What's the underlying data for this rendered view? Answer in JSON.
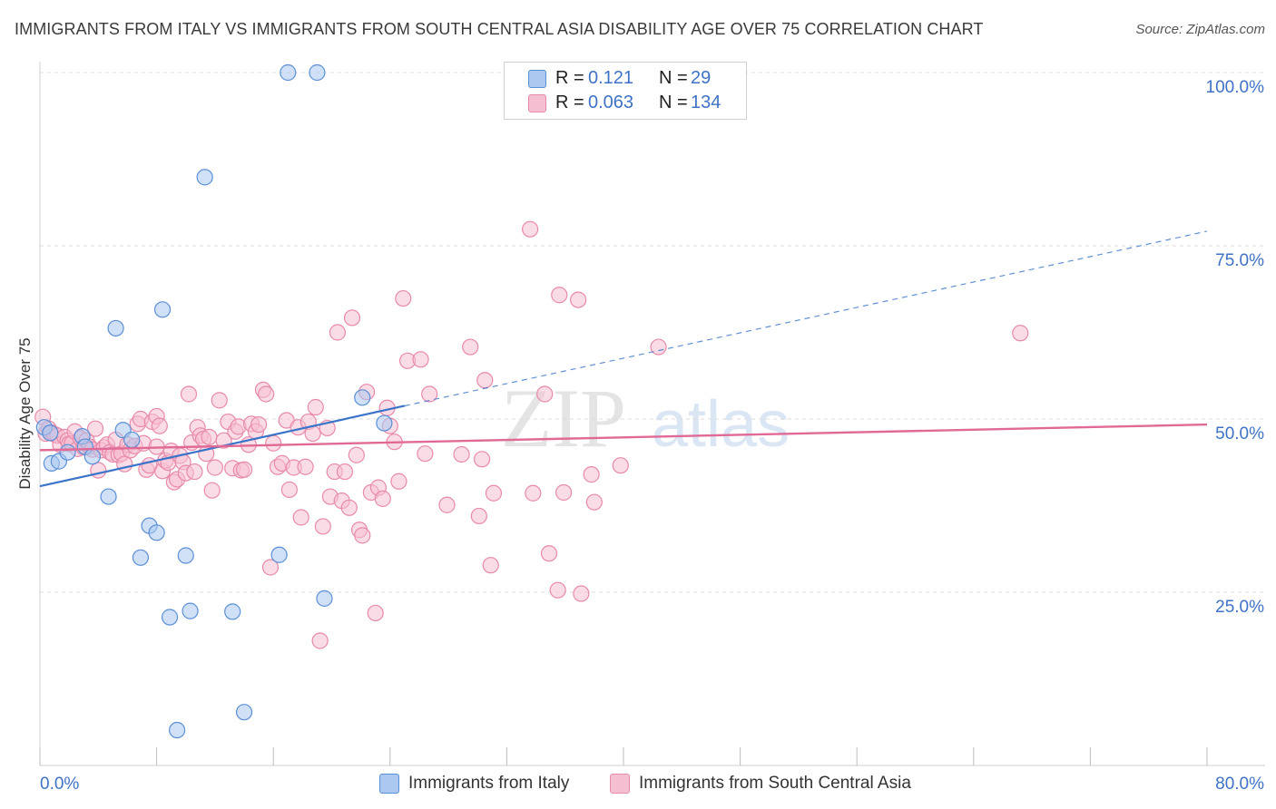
{
  "title": "IMMIGRANTS FROM ITALY VS IMMIGRANTS FROM SOUTH CENTRAL ASIA DISABILITY AGE OVER 75 CORRELATION CHART",
  "source": "Source: ZipAtlas.com",
  "watermark": "ZIPatlas",
  "colors": {
    "blue_fill": "#aac8f0",
    "blue_stroke": "#5b8fd6",
    "blue_line": "#3a74c9",
    "pink_fill": "#f6bfd1",
    "pink_stroke": "#e88aaa",
    "pink_line": "#e06a95",
    "tick_text": "#3f72c6",
    "grid": "#dcdcdc"
  },
  "legend": {
    "rows": [
      {
        "r_label": "R =",
        "r_value": "0.121",
        "n_label": "N =",
        "n_value": "29"
      },
      {
        "r_label": "R =",
        "r_value": "0.063",
        "n_label": "N =",
        "n_value": "134"
      }
    ]
  },
  "chart_data": {
    "type": "scatter",
    "title": "IMMIGRANTS FROM ITALY VS IMMIGRANTS FROM SOUTH CENTRAL ASIA DISABILITY AGE OVER 75 CORRELATION CHART",
    "xlabel": "",
    "ylabel": "Disability Age Over 75",
    "xlim": [
      0,
      80
    ],
    "ylim": [
      0,
      100
    ],
    "x_tick_labels": [
      "0.0%",
      "80.0%"
    ],
    "y_tick_values": [
      25,
      50,
      75,
      100
    ],
    "y_tick_labels": [
      "25.0%",
      "50.0%",
      "75.0%",
      "100.0%"
    ],
    "legend_position": "top-center",
    "series": [
      {
        "name": "Immigrants from Italy",
        "color": "blue",
        "R": 0.121,
        "N": 29,
        "trend": {
          "x0": 0,
          "y0": 40.3,
          "x1": 25,
          "y1": 51.9,
          "dashed_to_x": 80,
          "dashed_to_y": 77.1
        },
        "points": [
          [
            0.3,
            48.8
          ],
          [
            0.7,
            48.0
          ],
          [
            0.8,
            43.6
          ],
          [
            1.3,
            43.9
          ],
          [
            1.9,
            45.2
          ],
          [
            2.9,
            47.5
          ],
          [
            3.1,
            46.0
          ],
          [
            3.6,
            44.6
          ],
          [
            4.7,
            38.8
          ],
          [
            5.2,
            63.1
          ],
          [
            5.7,
            48.4
          ],
          [
            6.3,
            47.0
          ],
          [
            6.9,
            30.0
          ],
          [
            7.5,
            34.6
          ],
          [
            8.0,
            33.6
          ],
          [
            8.4,
            65.8
          ],
          [
            8.9,
            21.4
          ],
          [
            9.4,
            5.1
          ],
          [
            10.0,
            30.3
          ],
          [
            10.3,
            22.3
          ],
          [
            11.3,
            84.9
          ],
          [
            13.2,
            22.2
          ],
          [
            14.0,
            7.7
          ],
          [
            16.4,
            30.4
          ],
          [
            17.0,
            100.0
          ],
          [
            19.0,
            100.0
          ],
          [
            19.5,
            24.1
          ],
          [
            22.1,
            53.1
          ],
          [
            23.6,
            49.4
          ]
        ]
      },
      {
        "name": "Immigrants from South Central Asia",
        "color": "pink",
        "R": 0.063,
        "N": 134,
        "trend": {
          "x0": 0,
          "y0": 45.5,
          "x1": 80,
          "y1": 49.2
        },
        "points": [
          [
            0.2,
            50.3
          ],
          [
            0.4,
            47.9
          ],
          [
            0.6,
            48.6
          ],
          [
            0.8,
            48.0
          ],
          [
            1.0,
            47.8
          ],
          [
            1.2,
            47.6
          ],
          [
            1.4,
            46.3
          ],
          [
            1.7,
            47.4
          ],
          [
            1.9,
            46.9
          ],
          [
            2.0,
            46.4
          ],
          [
            2.2,
            46.5
          ],
          [
            2.4,
            48.2
          ],
          [
            2.6,
            45.7
          ],
          [
            2.8,
            47.2
          ],
          [
            3.0,
            45.9
          ],
          [
            3.2,
            46.9
          ],
          [
            3.4,
            46.0
          ],
          [
            3.6,
            45.6
          ],
          [
            3.8,
            48.6
          ],
          [
            4.0,
            42.6
          ],
          [
            4.2,
            45.5
          ],
          [
            4.4,
            45.9
          ],
          [
            4.6,
            46.3
          ],
          [
            4.8,
            45.2
          ],
          [
            5.0,
            44.9
          ],
          [
            5.2,
            47.0
          ],
          [
            5.4,
            44.8
          ],
          [
            5.6,
            45.0
          ],
          [
            5.8,
            43.5
          ],
          [
            6.0,
            46.3
          ],
          [
            6.2,
            45.5
          ],
          [
            6.5,
            46.1
          ],
          [
            6.7,
            49.3
          ],
          [
            6.9,
            50.0
          ],
          [
            7.1,
            46.5
          ],
          [
            7.3,
            42.7
          ],
          [
            7.5,
            43.3
          ],
          [
            7.7,
            49.6
          ],
          [
            8.0,
            50.4
          ],
          [
            8.2,
            49.0
          ],
          [
            8.4,
            42.5
          ],
          [
            8.6,
            44.0
          ],
          [
            8.8,
            43.7
          ],
          [
            9.0,
            45.4
          ],
          [
            9.2,
            40.9
          ],
          [
            9.4,
            41.3
          ],
          [
            9.6,
            44.7
          ],
          [
            9.8,
            43.8
          ],
          [
            10.0,
            42.2
          ],
          [
            10.2,
            53.6
          ],
          [
            10.4,
            46.6
          ],
          [
            10.6,
            42.4
          ],
          [
            10.8,
            48.8
          ],
          [
            11.0,
            47.6
          ],
          [
            11.2,
            47.1
          ],
          [
            11.4,
            45.0
          ],
          [
            11.6,
            47.4
          ],
          [
            11.8,
            39.7
          ],
          [
            12.0,
            43.0
          ],
          [
            12.3,
            52.7
          ],
          [
            12.6,
            46.9
          ],
          [
            12.9,
            49.6
          ],
          [
            13.2,
            42.9
          ],
          [
            13.4,
            48.2
          ],
          [
            13.6,
            48.9
          ],
          [
            13.8,
            42.6
          ],
          [
            14.0,
            42.7
          ],
          [
            14.3,
            46.3
          ],
          [
            14.5,
            49.3
          ],
          [
            14.8,
            48.2
          ],
          [
            15.0,
            49.2
          ],
          [
            15.3,
            54.2
          ],
          [
            15.5,
            53.6
          ],
          [
            15.8,
            28.6
          ],
          [
            16.0,
            46.5
          ],
          [
            16.3,
            43.1
          ],
          [
            16.6,
            43.6
          ],
          [
            16.9,
            49.8
          ],
          [
            17.1,
            39.8
          ],
          [
            17.4,
            43.0
          ],
          [
            17.7,
            48.8
          ],
          [
            17.9,
            35.8
          ],
          [
            18.2,
            43.1
          ],
          [
            18.4,
            49.6
          ],
          [
            18.7,
            47.9
          ],
          [
            18.9,
            51.7
          ],
          [
            19.2,
            18.0
          ],
          [
            19.4,
            34.5
          ],
          [
            19.7,
            48.7
          ],
          [
            19.9,
            38.8
          ],
          [
            20.2,
            42.4
          ],
          [
            20.4,
            62.5
          ],
          [
            20.7,
            38.2
          ],
          [
            20.9,
            42.4
          ],
          [
            21.2,
            37.2
          ],
          [
            21.4,
            64.6
          ],
          [
            21.7,
            44.8
          ],
          [
            21.9,
            34.0
          ],
          [
            22.1,
            33.2
          ],
          [
            22.4,
            53.9
          ],
          [
            22.7,
            39.4
          ],
          [
            23.0,
            22.0
          ],
          [
            23.2,
            40.1
          ],
          [
            23.5,
            38.5
          ],
          [
            23.8,
            51.6
          ],
          [
            24.0,
            49.0
          ],
          [
            24.3,
            46.7
          ],
          [
            24.6,
            41.0
          ],
          [
            24.9,
            67.4
          ],
          [
            25.2,
            58.4
          ],
          [
            26.1,
            58.6
          ],
          [
            26.4,
            45.0
          ],
          [
            26.7,
            53.6
          ],
          [
            27.9,
            37.6
          ],
          [
            28.9,
            44.9
          ],
          [
            29.5,
            60.4
          ],
          [
            30.1,
            36.0
          ],
          [
            30.3,
            44.2
          ],
          [
            30.5,
            55.6
          ],
          [
            30.9,
            28.9
          ],
          [
            31.1,
            39.3
          ],
          [
            33.6,
            77.4
          ],
          [
            33.8,
            39.3
          ],
          [
            34.6,
            53.6
          ],
          [
            34.9,
            30.6
          ],
          [
            35.5,
            25.3
          ],
          [
            35.6,
            67.9
          ],
          [
            35.9,
            39.4
          ],
          [
            36.9,
            67.2
          ],
          [
            37.1,
            24.8
          ],
          [
            37.8,
            42.0
          ],
          [
            38.0,
            38.0
          ],
          [
            39.8,
            43.3
          ],
          [
            42.4,
            60.4
          ],
          [
            67.2,
            62.4
          ],
          [
            8.0,
            46.0
          ]
        ]
      }
    ]
  },
  "bottom_legend": {
    "items": [
      {
        "label": "Immigrants from Italy"
      },
      {
        "label": "Immigrants from South Central Asia"
      }
    ]
  }
}
